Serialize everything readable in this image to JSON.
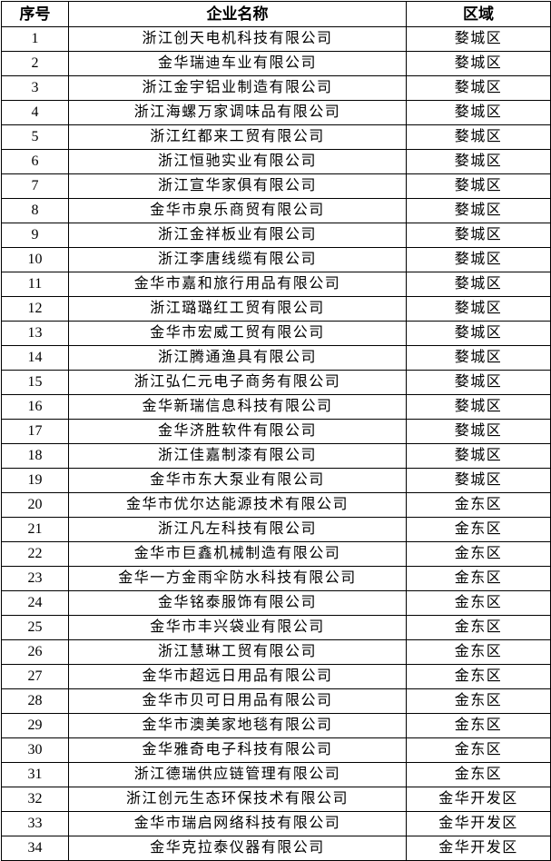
{
  "headers": [
    "序号",
    "企业名称",
    "区域"
  ],
  "rows": [
    [
      "1",
      "浙江创天电机科技有限公司",
      "婺城区"
    ],
    [
      "2",
      "金华瑞迪车业有限公司",
      "婺城区"
    ],
    [
      "3",
      "浙江金宇铝业制造有限公司",
      "婺城区"
    ],
    [
      "4",
      "浙江海螺万家调味品有限公司",
      "婺城区"
    ],
    [
      "5",
      "浙江红都来工贸有限公司",
      "婺城区"
    ],
    [
      "6",
      "浙江恒驰实业有限公司",
      "婺城区"
    ],
    [
      "7",
      "浙江宣华家俱有限公司",
      "婺城区"
    ],
    [
      "8",
      "金华市泉乐商贸有限公司",
      "婺城区"
    ],
    [
      "9",
      "浙江金祥板业有限公司",
      "婺城区"
    ],
    [
      "10",
      "浙江李唐线缆有限公司",
      "婺城区"
    ],
    [
      "11",
      "金华市嘉和旅行用品有限公司",
      "婺城区"
    ],
    [
      "12",
      "浙江璐璐红工贸有限公司",
      "婺城区"
    ],
    [
      "13",
      "金华市宏威工贸有限公司",
      "婺城区"
    ],
    [
      "14",
      "浙江腾通渔具有限公司",
      "婺城区"
    ],
    [
      "15",
      "浙江弘仁元电子商务有限公司",
      "婺城区"
    ],
    [
      "16",
      "金华新瑞信息科技有限公司",
      "婺城区"
    ],
    [
      "17",
      "金华济胜软件有限公司",
      "婺城区"
    ],
    [
      "18",
      "浙江佳嘉制漆有限公司",
      "婺城区"
    ],
    [
      "19",
      "金华市东大泵业有限公司",
      "婺城区"
    ],
    [
      "20",
      "金华市优尔达能源技术有限公司",
      "金东区"
    ],
    [
      "21",
      "浙江凡左科技有限公司",
      "金东区"
    ],
    [
      "22",
      "金华市巨鑫机械制造有限公司",
      "金东区"
    ],
    [
      "23",
      "金华一方金雨伞防水科技有限公司",
      "金东区"
    ],
    [
      "24",
      "金华铭泰服饰有限公司",
      "金东区"
    ],
    [
      "25",
      "金华市丰兴袋业有限公司",
      "金东区"
    ],
    [
      "26",
      "浙江慧琳工贸有限公司",
      "金东区"
    ],
    [
      "27",
      "金华市超远日用品有限公司",
      "金东区"
    ],
    [
      "28",
      "金华市贝可日用品有限公司",
      "金东区"
    ],
    [
      "29",
      "金华市澳美家地毯有限公司",
      "金东区"
    ],
    [
      "30",
      "金华雅奇电子科技有限公司",
      "金东区"
    ],
    [
      "31",
      "浙江德瑞供应链管理有限公司",
      "金东区"
    ],
    [
      "32",
      "浙江创元生态环保技术有限公司",
      "金华开发区"
    ],
    [
      "33",
      "金华市瑞启网络科技有限公司",
      "金华开发区"
    ],
    [
      "34",
      "金华克拉泰仪器有限公司",
      "金华开发区"
    ]
  ]
}
